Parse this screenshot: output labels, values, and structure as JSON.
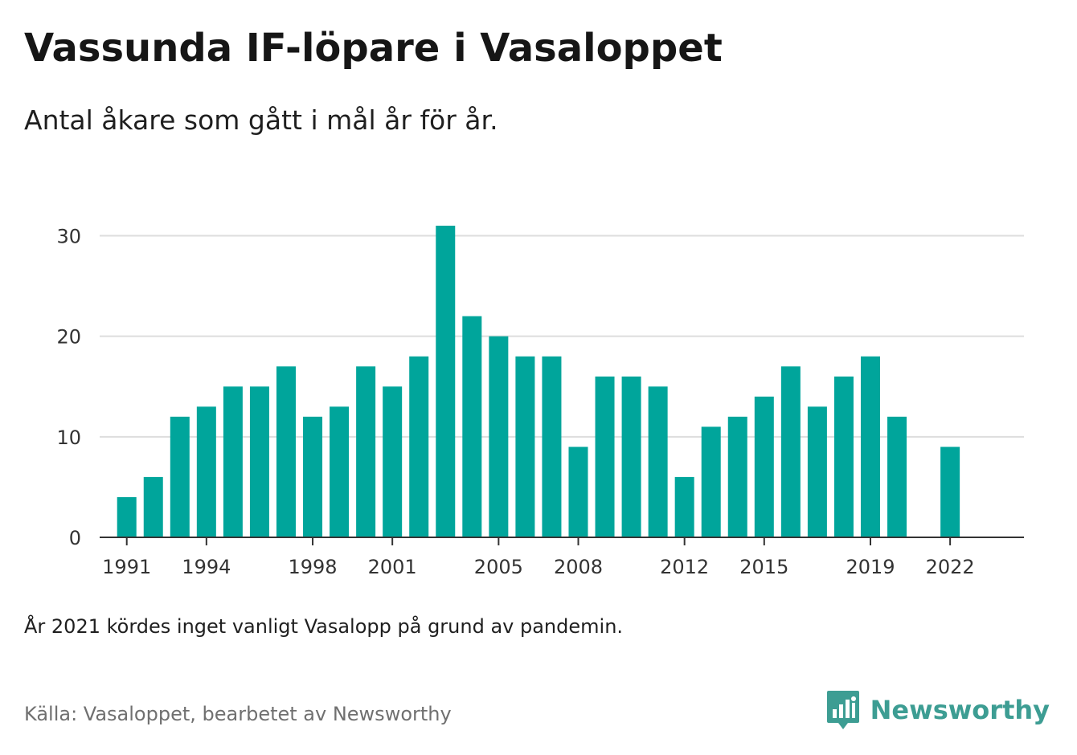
{
  "header": {
    "title": "Vassunda IF-löpare i Vasaloppet",
    "subtitle": "Antal åkare som gått i mål år för år."
  },
  "footer": {
    "note": "År 2021 kördes inget vanligt Vasalopp på grund av pandemin.",
    "source": "Källa: Vasaloppet, bearbetet av Newsworthy",
    "brand": "Newsworthy",
    "brand_icon": "bar-chart-speech-bubble-icon"
  },
  "colors": {
    "bar": "#00a59b",
    "brand": "#3d9d93",
    "grid": "#dddddd",
    "axis": "#333333"
  },
  "chart_data": {
    "type": "bar",
    "title": "",
    "xlabel": "",
    "ylabel": "",
    "x": [
      1991,
      1992,
      1993,
      1994,
      1995,
      1996,
      1997,
      1998,
      1999,
      2000,
      2001,
      2002,
      2003,
      2004,
      2005,
      2006,
      2007,
      2008,
      2009,
      2010,
      2011,
      2012,
      2013,
      2014,
      2015,
      2016,
      2017,
      2018,
      2019,
      2020,
      2022
    ],
    "values": [
      4,
      6,
      12,
      13,
      15,
      15,
      17,
      12,
      13,
      17,
      15,
      18,
      31,
      22,
      20,
      18,
      18,
      9,
      16,
      16,
      15,
      6,
      11,
      12,
      14,
      17,
      13,
      16,
      18,
      12,
      9
    ],
    "xlim": [
      1989.98,
      2024.78
    ],
    "ylim": [
      0,
      31
    ],
    "yticks": [
      0,
      10,
      20,
      30
    ],
    "xticks": [
      1991,
      1994,
      1998,
      2001,
      2005,
      2008,
      2012,
      2015,
      2019,
      2022
    ],
    "grid": true,
    "legend": "none"
  }
}
